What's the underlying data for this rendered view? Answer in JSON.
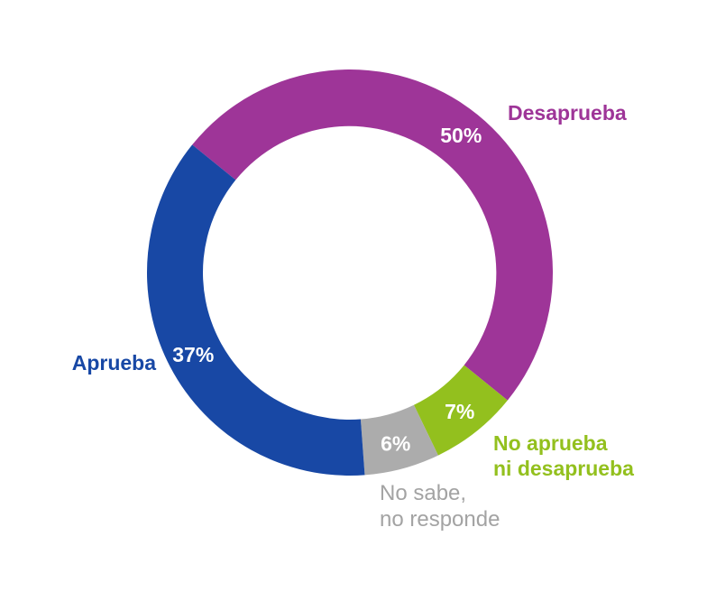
{
  "background_color": "#ffffff",
  "chart_data": {
    "type": "pie",
    "subtype": "donut",
    "title": "",
    "units": "%",
    "direction": "clockwise",
    "start_angle_deg_clockwise_from_top": -51,
    "legend_position": "around-chart",
    "segments": [
      {
        "name": "Desaprueba",
        "value": 50,
        "display": "50%",
        "color": "#9E3598"
      },
      {
        "name": "No aprueba ni desaprueba",
        "value": 7,
        "display": "7%",
        "color": "#93C01E"
      },
      {
        "name": "No sabe, no responde",
        "value": 6,
        "display": "6%",
        "color": "#ACACAC"
      },
      {
        "name": "Aprueba",
        "value": 37,
        "display": "37%",
        "color": "#1848A5"
      }
    ],
    "value_label_color": "#ffffff"
  },
  "callouts": {
    "desaprueba": {
      "label": "Desaprueba",
      "color": "#9E3598"
    },
    "aprueba": {
      "label": "Aprueba",
      "color": "#1848A5"
    },
    "no_aprueba": {
      "line1": "No aprueba",
      "line2": "ni desaprueba",
      "color": "#93C01E"
    },
    "no_sabe": {
      "line1": "No sabe,",
      "line2": "no responde",
      "color": "#A3A3A3"
    }
  }
}
